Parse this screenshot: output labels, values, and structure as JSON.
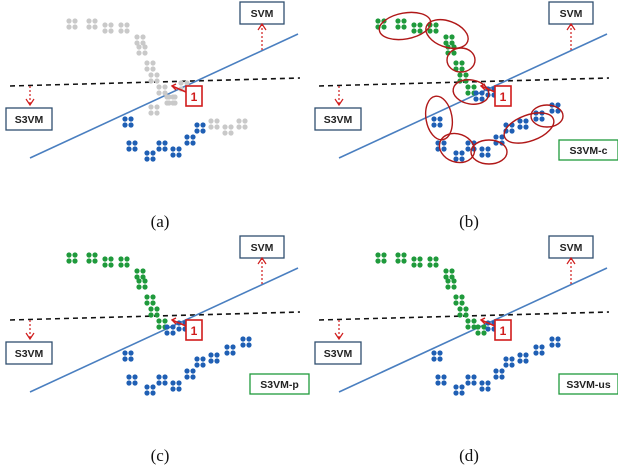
{
  "colors": {
    "gray": "#c9c9c9",
    "green": "#1f9a3c",
    "blue": "#1f5fb4",
    "svm_line": "#4a7fc0",
    "box_border": "#2f4f6f",
    "pointer": "#d01c1c",
    "circle": "#b01818",
    "legend_border": "#1f9a3c"
  },
  "labels": {
    "svm": "SVM",
    "s3vm": "S3VM",
    "marker": "1"
  },
  "panels": [
    {
      "caption": "(a)",
      "variant": "",
      "coloring": "gray"
    },
    {
      "caption": "(b)",
      "variant": "S3VM-c",
      "coloring": "color"
    },
    {
      "caption": "(c)",
      "variant": "S3VM-p",
      "coloring": "color"
    },
    {
      "caption": "(d)",
      "variant": "S3VM-us",
      "coloring": "color"
    }
  ]
}
